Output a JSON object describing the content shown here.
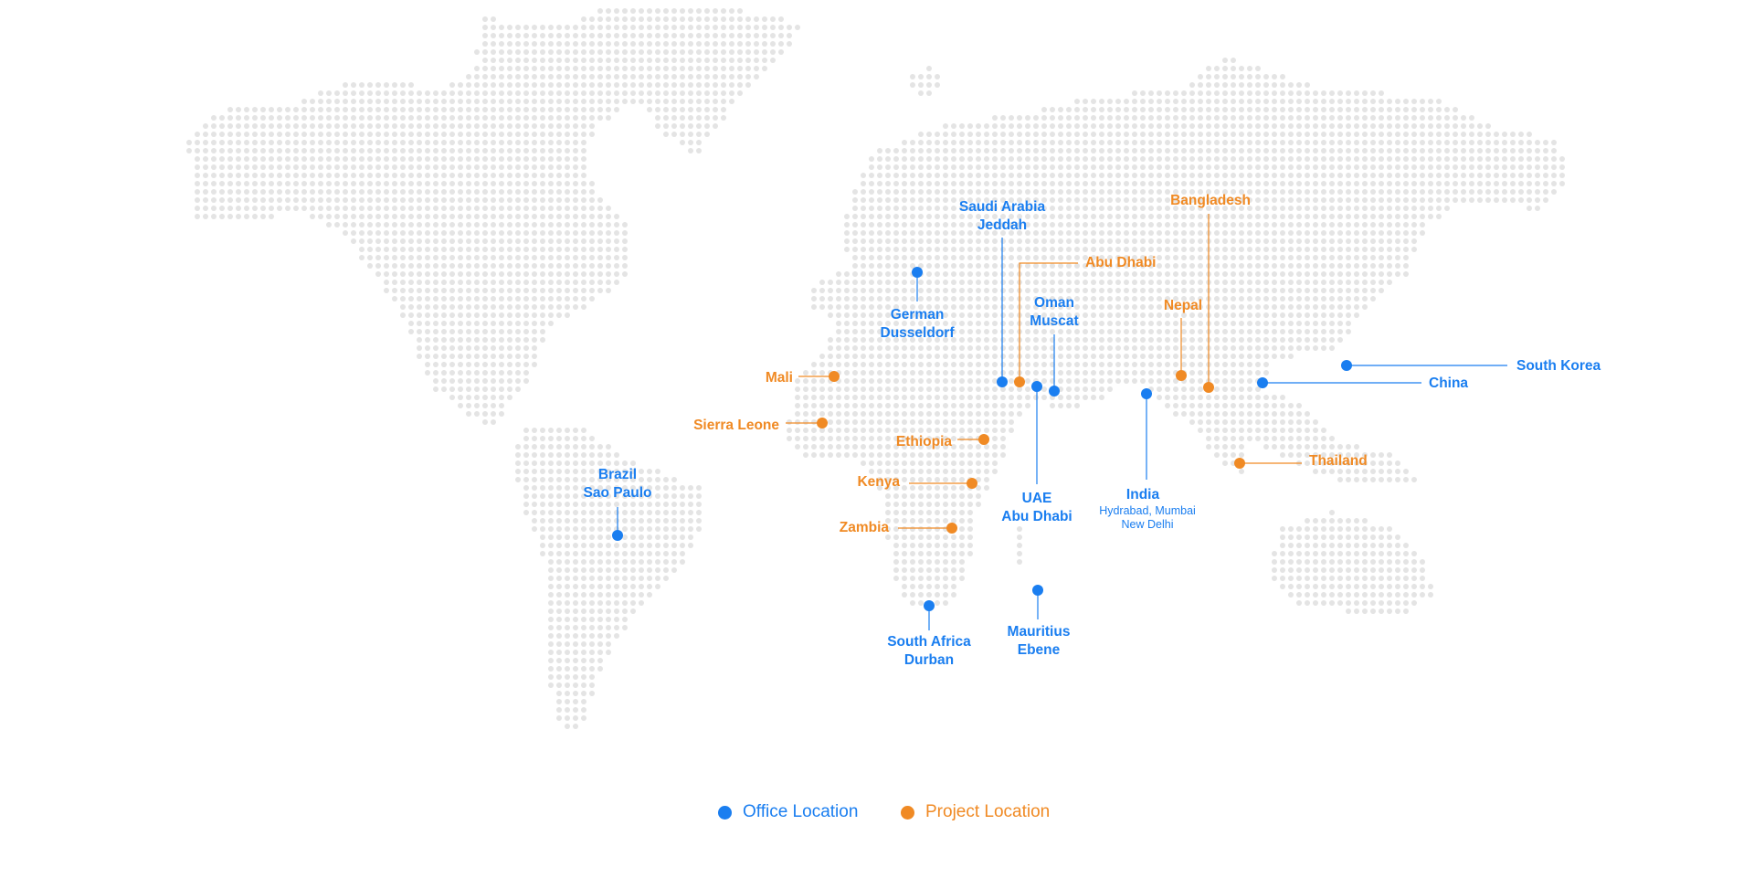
{
  "colors": {
    "office": "#1a7ef0",
    "project": "#f08a24",
    "land_dots": "#e4e4e4"
  },
  "icons": {
    "marker": "dot-marker-icon"
  },
  "legend": {
    "office": "Office Location",
    "project": "Project Location"
  },
  "locations": {
    "saudi": {
      "line1": "Saudi Arabia",
      "line2": "Jeddah",
      "type": "office"
    },
    "abudhabi_p": {
      "line1": "Abu Dhabi",
      "type": "project"
    },
    "oman": {
      "line1": "Oman",
      "line2": "Muscat",
      "type": "office"
    },
    "german": {
      "line1": "German",
      "line2": "Dusseldorf",
      "type": "office"
    },
    "mali": {
      "line1": "Mali",
      "type": "project"
    },
    "sierra": {
      "line1": "Sierra Leone",
      "type": "project"
    },
    "ethiopia": {
      "line1": "Ethiopia",
      "type": "project"
    },
    "kenya": {
      "line1": "Kenya",
      "type": "project"
    },
    "zambia": {
      "line1": "Zambia",
      "type": "project"
    },
    "uae": {
      "line1": "UAE",
      "line2": "Abu Dhabi",
      "type": "office"
    },
    "india": {
      "line1": "India",
      "sub1": "Hydrabad, Mumbai",
      "sub2": "New Delhi",
      "type": "office"
    },
    "nepal": {
      "line1": "Nepal",
      "type": "project"
    },
    "bangladesh": {
      "line1": "Bangladesh",
      "type": "project"
    },
    "china": {
      "line1": "China",
      "type": "office"
    },
    "skorea": {
      "line1": "South Korea",
      "type": "office"
    },
    "thailand": {
      "line1": "Thailand",
      "type": "project"
    },
    "brazil": {
      "line1": "Brazil",
      "line2": "Sao Paulo",
      "type": "office"
    },
    "safrica": {
      "line1": "South Africa",
      "line2": "Durban",
      "type": "office"
    },
    "mauritius": {
      "line1": "Mauritius",
      "line2": "Ebene",
      "type": "office"
    }
  }
}
